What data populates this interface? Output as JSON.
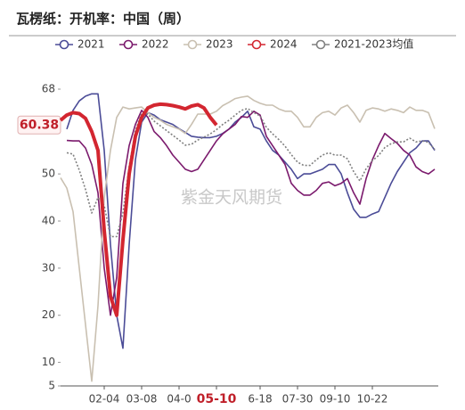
{
  "chart_data": {
    "type": "line",
    "title": "瓦楞纸：开机率：中国（周）",
    "watermark": "紫金天风期货",
    "categories": [
      null,
      null,
      null,
      null,
      null,
      null,
      null,
      "02-04",
      null,
      null,
      null,
      null,
      null,
      "03-08",
      null,
      null,
      null,
      null,
      null,
      "04-0",
      null,
      null,
      null,
      null,
      null,
      "05-10",
      null,
      null,
      null,
      null,
      null,
      null,
      "6-18",
      null,
      null,
      null,
      null,
      null,
      "07-30",
      null,
      null,
      null,
      null,
      null,
      "09-10",
      null,
      null,
      null,
      null,
      null,
      "10-22",
      null,
      null,
      null,
      null,
      null,
      null,
      null,
      null,
      null,
      null
    ],
    "ylim": [
      5,
      68
    ],
    "yticks": [
      5,
      10,
      20,
      30,
      40,
      50,
      68
    ],
    "current_value": 60.38,
    "series": [
      {
        "name": "2021",
        "color": "#4b4c97",
        "values": [
          null,
          59.5,
          63.5,
          65.5,
          66.5,
          67,
          67,
          55,
          35,
          20,
          13,
          35,
          53,
          61,
          63,
          62.5,
          61.5,
          61,
          60.5,
          59.6,
          58.8,
          58,
          57.8,
          57.7,
          57.7,
          58,
          58.6,
          59.5,
          61,
          62,
          63.3,
          60,
          59.5,
          57,
          55,
          54,
          52.5,
          51,
          49,
          50,
          50,
          50.5,
          51,
          52,
          52,
          50,
          46,
          42.5,
          40.8,
          40.8,
          41.5,
          42,
          45,
          48,
          50.5,
          52.5,
          54.5,
          55.5,
          57,
          57,
          55
        ]
      },
      {
        "name": "2022",
        "color": "#7b1a6d",
        "values": [
          null,
          57.1,
          57,
          57,
          55.5,
          52,
          46,
          30,
          20,
          28,
          48,
          56,
          60.5,
          63.5,
          62,
          59,
          57.7,
          56,
          54,
          52.5,
          51,
          50.5,
          51,
          53,
          55,
          57,
          58.5,
          59.5,
          60.5,
          62.2,
          62,
          63.3,
          62.5,
          58,
          56,
          54,
          52,
          48,
          46.5,
          45.5,
          45.5,
          46.5,
          48,
          48.3,
          47.5,
          48,
          49,
          46,
          43.6,
          49,
          53,
          56,
          58.6,
          57.5,
          56.5,
          55,
          54,
          51.5,
          50.5,
          50,
          51
        ]
      },
      {
        "name": "2023",
        "color": "#c9c0b1",
        "values": [
          49.2,
          47,
          42,
          30,
          18,
          6,
          22,
          45,
          55,
          62,
          64.2,
          63.8,
          64,
          64.2,
          63,
          62,
          61.4,
          60.5,
          60,
          59.5,
          58.6,
          60.5,
          62.7,
          62.7,
          62.7,
          63.3,
          64.5,
          65.2,
          66,
          66.3,
          66.5,
          65.6,
          65,
          64.6,
          64.6,
          63.8,
          63.3,
          63.3,
          62,
          60,
          60,
          62,
          63,
          63.3,
          62.5,
          64,
          64.6,
          63,
          61,
          63.5,
          64,
          63.8,
          63.3,
          63.8,
          63.5,
          63,
          64.2,
          63.5,
          63.5,
          63,
          59.6
        ]
      },
      {
        "name": "2024",
        "color": "#d32630",
        "highlight": true,
        "values": [
          61.4,
          62.5,
          63,
          62.8,
          61.8,
          59,
          55,
          38,
          24,
          20,
          36,
          50,
          58,
          62,
          64,
          64.6,
          64.8,
          64.7,
          64.5,
          64.2,
          63.8,
          64.4,
          64.7,
          64,
          62,
          60.38,
          null,
          null,
          null,
          null,
          null,
          null,
          null,
          null,
          null,
          null,
          null,
          null,
          null,
          null,
          null,
          null,
          null,
          null,
          null,
          null,
          null,
          null,
          null,
          null,
          null,
          null,
          null,
          null,
          null,
          null,
          null,
          null,
          null,
          null,
          null
        ]
      },
      {
        "name": "2021-2023均值",
        "color": "#808080",
        "dashed": true,
        "values": [
          null,
          54.5,
          54.2,
          50.8,
          46.7,
          41.7,
          45,
          43.3,
          36.7,
          36.7,
          41.7,
          51.6,
          59.2,
          62.9,
          62.7,
          61.2,
          60.2,
          59.2,
          58.2,
          57.2,
          56.1,
          56.3,
          57.2,
          57.8,
          58.5,
          59.4,
          60.5,
          61.4,
          62.5,
          63.5,
          63.9,
          63,
          62.3,
          59.9,
          58.5,
          57.3,
          55.9,
          54.1,
          52.5,
          51.8,
          51.8,
          53,
          54,
          54.5,
          54,
          54,
          53.2,
          50.5,
          48.5,
          51.1,
          52.8,
          53.9,
          55.6,
          56.4,
          56.8,
          56.8,
          57.6,
          56.8,
          57,
          56.7,
          55.2
        ]
      }
    ]
  }
}
